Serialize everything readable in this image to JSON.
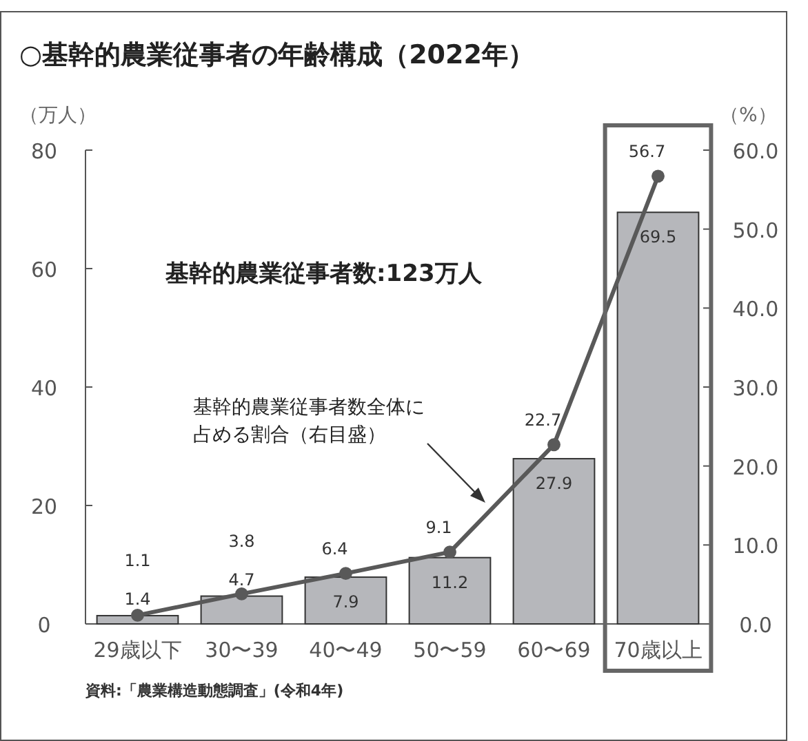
{
  "chart_data": {
    "type": "bar",
    "title": "○基幹的農業従事者の年齢構成（2022年）",
    "ylabel": "（万人）",
    "y2label": "（%）",
    "categories": [
      "29歳以下",
      "30〜39",
      "40〜49",
      "50〜59",
      "60〜69",
      "70歳以上"
    ],
    "series": [
      {
        "color": "#b6b7bb",
        "values": [
          1.4,
          4.7,
          7.9,
          11.2,
          27.9,
          69.5
        ]
      },
      {
        "type": "line",
        "axis": "y2",
        "color": "#595959",
        "marker": "circle",
        "values": [
          1.1,
          3.8,
          6.4,
          9.1,
          22.7,
          56.7
        ]
      }
    ],
    "ylim": [
      0,
      80
    ],
    "yticks": [
      0,
      20,
      40,
      60,
      80
    ],
    "y2lim": [
      0,
      60
    ],
    "y2ticks": [
      {
        "value": 0,
        "label": "0.0"
      },
      {
        "value": 10,
        "label": "10.0"
      },
      {
        "value": 20,
        "label": "20.0"
      },
      {
        "value": 30,
        "label": "30.0"
      },
      {
        "value": 40,
        "label": "40.0"
      },
      {
        "value": 50,
        "label": "50.0"
      },
      {
        "value": 60,
        "label": "60.0"
      }
    ],
    "data_labels": true,
    "grid": false,
    "annotations": [
      "基幹的農業従事者数:123万人",
      "基幹的農業従事者数全体に占める割合（右目盛）",
      "資料:「農業構造動態調査」(令和4年)"
    ]
  }
}
